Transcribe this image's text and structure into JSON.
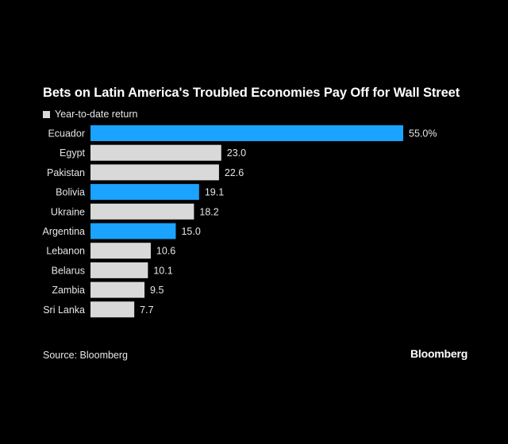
{
  "title": "Bets on Latin America's Troubled Economies Pay Off for Wall Street",
  "legend_label": "Year-to-date return",
  "source": "Source: Bloomberg",
  "brand": "Bloomberg",
  "colors": {
    "background": "#000000",
    "highlight": "#1aa3ff",
    "default": "#d9d9d9",
    "text": "#ffffff"
  },
  "chart_data": {
    "type": "bar",
    "orientation": "horizontal",
    "categories": [
      "Ecuador",
      "Egypt",
      "Pakistan",
      "Bolivia",
      "Ukraine",
      "Argentina",
      "Lebanon",
      "Belarus",
      "Zambia",
      "Sri Lanka"
    ],
    "values": [
      55.0,
      23.0,
      22.6,
      19.1,
      18.2,
      15.0,
      10.6,
      10.1,
      9.5,
      7.7
    ],
    "value_labels": [
      "55.0%",
      "23.0",
      "22.6",
      "19.1",
      "18.2",
      "15.0",
      "10.6",
      "10.1",
      "9.5",
      "7.7"
    ],
    "highlighted": [
      true,
      false,
      false,
      true,
      false,
      true,
      false,
      false,
      false,
      false
    ],
    "series": [
      {
        "values": [
          55.0,
          23.0,
          22.6,
          19.1,
          18.2,
          15.0,
          10.6,
          10.1,
          9.5,
          7.7
        ]
      }
    ],
    "xlim": [
      0,
      55
    ],
    "grid": false,
    "legend_position": "top-left"
  }
}
